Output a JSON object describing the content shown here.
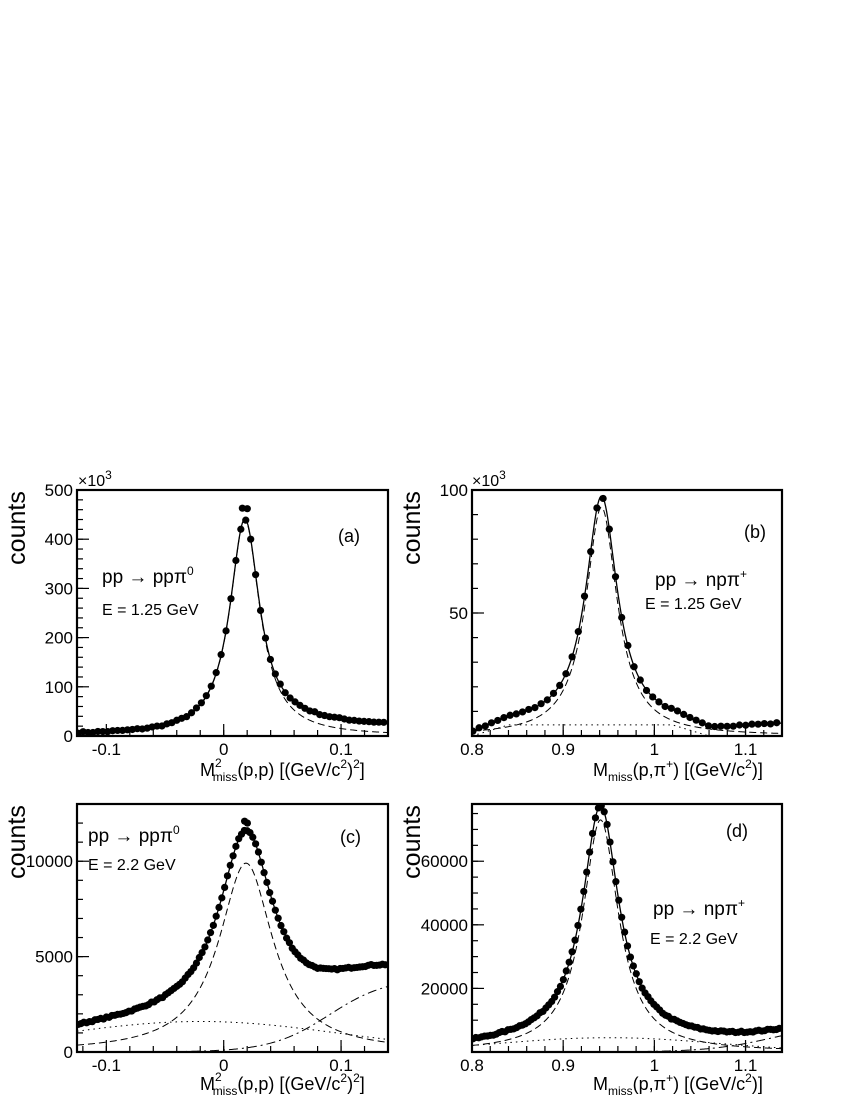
{
  "chart_data": [
    {
      "panel": "a",
      "type": "scatter",
      "tag": "(a)",
      "ylabel": "counts",
      "xlabel": {
        "main": "M",
        "sup": "2",
        "sub": "miss",
        "rest": "(p,p) [(GeV/c",
        "sup2": "2",
        "tail": ")",
        "sup3": "2",
        "end": "]"
      },
      "y_multiplier": {
        "base": "×10",
        "exp": "3"
      },
      "reaction": {
        "text": "pp → ppπ",
        "sup": "0"
      },
      "energy": "E = 1.25 GeV",
      "xlim": [
        -0.125,
        0.14
      ],
      "ylim": [
        0,
        500
      ],
      "xticks": [
        {
          "v": -0.1,
          "label": "-0.1"
        },
        {
          "v": 0,
          "label": "0"
        },
        {
          "v": 0.1,
          "label": "0.1"
        }
      ],
      "yticks": [
        {
          "v": 0,
          "label": "0"
        },
        {
          "v": 100,
          "label": "100"
        },
        {
          "v": 200,
          "label": "200"
        },
        {
          "v": 300,
          "label": "300"
        },
        {
          "v": 400,
          "label": "400"
        },
        {
          "v": 500,
          "label": "500"
        }
      ],
      "xminor": 0.02,
      "yminor": 20,
      "peak": {
        "center": 0.018,
        "amp": 440,
        "width": 0.0155
      },
      "background": [
        {
          "kind": "linear",
          "x0": -0.125,
          "y0": 2,
          "x1": 0.14,
          "y1": 0,
          "visible": false
        },
        {
          "kind": "rise",
          "x0": 0.02,
          "mid": 0.045,
          "w": 0.008,
          "amp": 20,
          "visible": false
        }
      ],
      "data": {
        "x_start": -0.124,
        "x_end": 0.139,
        "step": 0.0042,
        "peak_top": [
          463,
          462
        ]
      }
    },
    {
      "panel": "b",
      "type": "scatter",
      "tag": "(b)",
      "ylabel": "counts",
      "xlabel": {
        "main": "M",
        "sub": "miss",
        "rest": "(p,π",
        "sup": "+",
        "tail": ") [(GeV/c",
        "sup2": "2",
        "end": ")]"
      },
      "y_multiplier": {
        "base": "×10",
        "exp": "3"
      },
      "reaction": {
        "text": "pp → npπ",
        "sup": "+"
      },
      "energy": "E = 1.25 GeV",
      "xlim": [
        0.8,
        1.14
      ],
      "ylim": [
        0,
        100
      ],
      "xticks": [
        {
          "v": 0.8,
          "label": "0.8"
        },
        {
          "v": 0.9,
          "label": "0.9"
        },
        {
          "v": 1.0,
          "label": "1"
        },
        {
          "v": 1.1,
          "label": "1.1"
        }
      ],
      "yticks": [
        {
          "v": 50,
          "label": "50"
        },
        {
          "v": 100,
          "label": "100"
        }
      ],
      "xminor": 0.02,
      "yminor": 10,
      "peak": {
        "center": 0.942,
        "amp": 93,
        "width": 0.021
      },
      "background": [
        {
          "kind": "flat",
          "y": 4.5,
          "x0": 0.84,
          "x1": 1.02,
          "visible": true
        },
        {
          "kind": "rise",
          "x0": 1.02,
          "mid": 1.09,
          "w": 0.03,
          "amp": 5,
          "visible": false
        }
      ],
      "data": {
        "x_start": 0.801,
        "x_end": 1.138,
        "step": 0.0068
      }
    },
    {
      "panel": "c",
      "type": "scatter",
      "tag": "(c)",
      "ylabel": "counts",
      "xlabel": {
        "main": "M",
        "sup": "2",
        "sub": "miss",
        "rest": "(p,p) [(GeV/c",
        "sup2": "2",
        "tail": ")",
        "sup3": "2",
        "end": "]"
      },
      "reaction": {
        "text": "pp → ppπ",
        "sup": "0"
      },
      "energy": "E = 2.2 GeV",
      "xlim": [
        -0.125,
        0.14
      ],
      "ylim": [
        0,
        13000
      ],
      "xticks": [
        {
          "v": -0.1,
          "label": "-0.1"
        },
        {
          "v": 0,
          "label": "0"
        },
        {
          "v": 0.1,
          "label": "0.1"
        }
      ],
      "yticks": [
        {
          "v": 0,
          "label": "0"
        },
        {
          "v": 5000,
          "label": "5000"
        },
        {
          "v": 10000,
          "label": "10000"
        }
      ],
      "xminor": 0.02,
      "yminor": 1000,
      "peak": {
        "center": 0.019,
        "amp": 9900,
        "width": 0.028
      },
      "background": [
        {
          "kind": "hump",
          "center": -0.02,
          "amp": 1600,
          "sigma": 0.12,
          "visible": true
        },
        {
          "kind": "rise",
          "x0": -0.125,
          "mid": 0.09,
          "w": 0.025,
          "amp": 3900,
          "visible": true
        }
      ],
      "data": {
        "x_start": -0.124,
        "x_end": 0.139,
        "step": 0.0024,
        "peak_top": [
          12100,
          12000
        ]
      }
    },
    {
      "panel": "d",
      "type": "scatter",
      "tag": "(d)",
      "ylabel": "counts",
      "xlabel": {
        "main": "M",
        "sub": "miss",
        "rest": "(p,π",
        "sup": "+",
        "tail": ") [(GeV/c",
        "sup2": "2",
        "end": ")]"
      },
      "reaction": {
        "text": "pp → npπ",
        "sup": "+"
      },
      "energy": "E = 2.2 GeV",
      "xlim": [
        0.8,
        1.14
      ],
      "ylim": [
        0,
        78000
      ],
      "xticks": [
        {
          "v": 0.8,
          "label": "0.8"
        },
        {
          "v": 0.9,
          "label": "0.9"
        },
        {
          "v": 1.0,
          "label": "1"
        },
        {
          "v": 1.1,
          "label": "1.1"
        }
      ],
      "yticks": [
        {
          "v": 20000,
          "label": "20000"
        },
        {
          "v": 40000,
          "label": "40000"
        },
        {
          "v": 60000,
          "label": "60000"
        }
      ],
      "xminor": 0.02,
      "yminor": 5000,
      "peak": {
        "center": 0.941,
        "amp": 73000,
        "width": 0.024
      },
      "background": [
        {
          "kind": "hump",
          "center": 0.95,
          "amp": 4500,
          "sigma": 0.12,
          "visible": true
        },
        {
          "kind": "rise",
          "x0": 0.98,
          "mid": 1.13,
          "w": 0.035,
          "amp": 9000,
          "visible": true
        }
      ],
      "data": {
        "x_start": 0.801,
        "x_end": 1.139,
        "step": 0.0032
      }
    }
  ]
}
